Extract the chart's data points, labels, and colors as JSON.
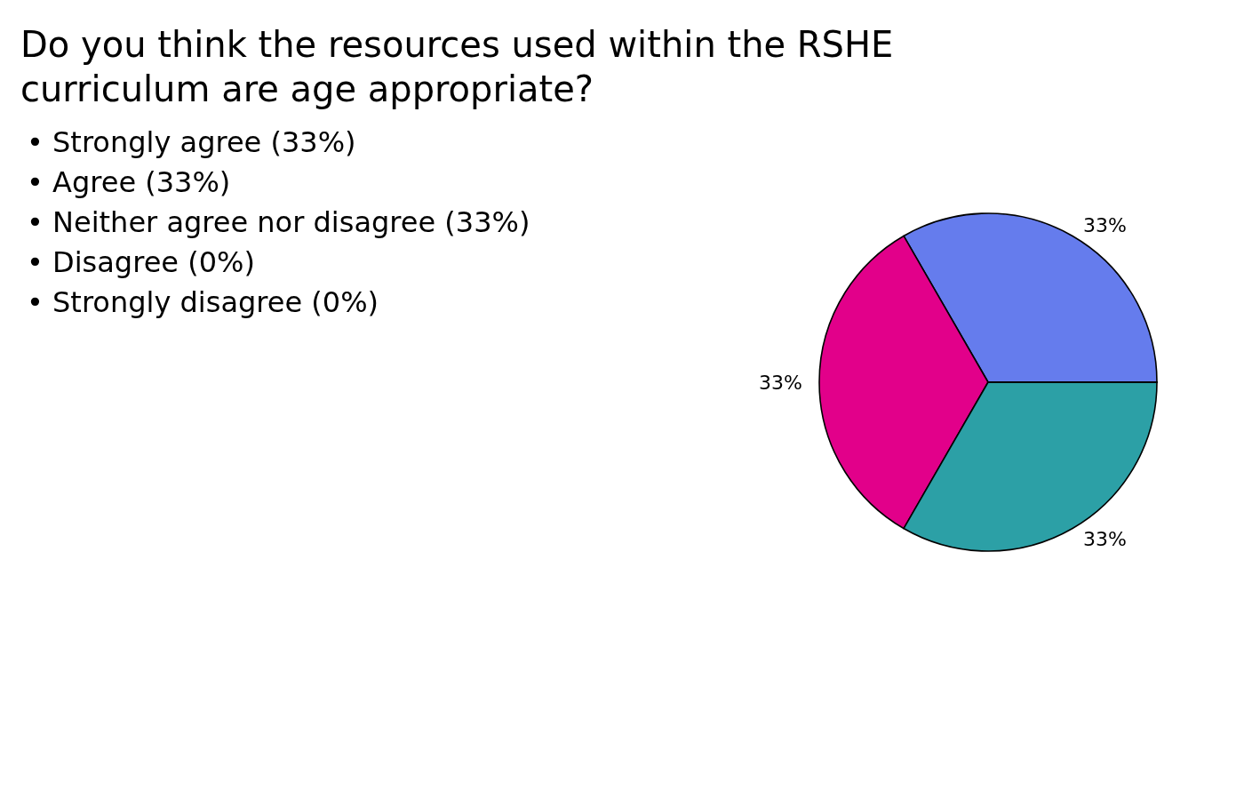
{
  "chart_data": {
    "type": "pie",
    "title": "Do you think the resources used within the RSHE curriculum are age appropriate?",
    "categories": [
      null,
      null,
      null,
      null,
      null
    ],
    "values": [
      33,
      33,
      33,
      0,
      0
    ],
    "colors": [
      "#657ced",
      "#e2008a",
      "#2ca0a6",
      null,
      null
    ],
    "value_labels": [
      "33%",
      "33%",
      "33%",
      null,
      null
    ],
    "annotations": [
      "• Strongly agree (33%)",
      "• Agree (33%)",
      "• Neither agree nor disagree (33%)",
      "• Disagree (0%)",
      "• Strongly disagree (0%)"
    ]
  }
}
